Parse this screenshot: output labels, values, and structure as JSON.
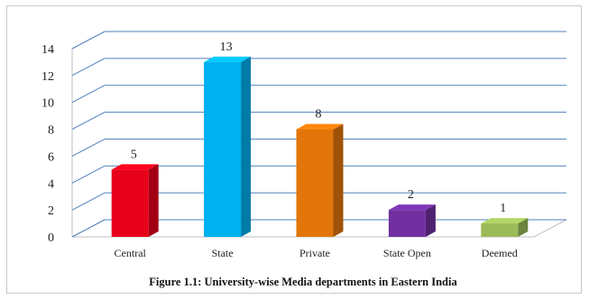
{
  "chart_data": {
    "type": "bar",
    "style": "3d-column",
    "categories": [
      "Central",
      "State",
      "Private",
      "State Open",
      "Deemed"
    ],
    "values": [
      5,
      13,
      8,
      2,
      1
    ],
    "data_labels": [
      "5",
      "13",
      "8",
      "2",
      "1"
    ],
    "colors": [
      "#e8001a",
      "#00b0ef",
      "#e3760b",
      "#7030a0",
      "#9bbb59"
    ],
    "title": "Figure 1.1: University-wise Media departments in Eastern India",
    "xlabel": "",
    "ylabel": "",
    "ylim": [
      0,
      14
    ],
    "yticks": [
      "0",
      "2",
      "4",
      "6",
      "8",
      "10",
      "12",
      "14"
    ],
    "grid": true,
    "gridline_color": "#4f81bd",
    "legend": "none"
  }
}
